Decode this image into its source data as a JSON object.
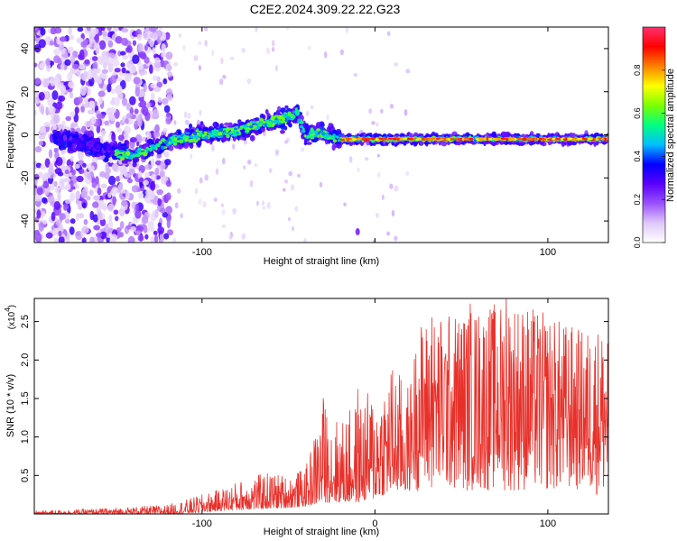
{
  "figure": {
    "title": "C2E2.2024.309.22.22.G23"
  },
  "chart_data": [
    {
      "type": "heatmap",
      "xlabel": "Height of straight line (km)",
      "ylabel": "Frequency (Hz)",
      "xlim": [
        -197,
        135
      ],
      "ylim": [
        -50,
        50
      ],
      "x_ticks": [
        -100,
        0,
        100
      ],
      "x_tick_labels": [
        "-100",
        "",
        "100"
      ],
      "y_ticks": [
        -40,
        -20,
        0,
        20,
        40
      ],
      "y_tick_labels": [
        "-40",
        "-20",
        "0",
        "20",
        "40"
      ],
      "colorbar": {
        "label": "Normalized spectral amplitude",
        "range": [
          0,
          1
        ],
        "ticks": [
          0.0,
          0.2,
          0.4,
          0.6,
          0.8
        ],
        "tick_labels": [
          "0.0",
          "0.2",
          "0.4",
          "0.6",
          "0.8"
        ],
        "colormap": [
          "#ffffff",
          "#e0c8f8",
          "#9a50ff",
          "#5a00ff",
          "#0000ff",
          "#00bfff",
          "#00ff80",
          "#7cff00",
          "#ffff00",
          "#ff8000",
          "#ff0000",
          "#ff3070"
        ]
      },
      "ridge": {
        "x": [
          -180,
          -150,
          -140,
          -120,
          -100,
          -80,
          -60,
          -50,
          -45,
          -40,
          -30,
          -20,
          0,
          20,
          50,
          100,
          135
        ],
        "y": [
          -2,
          -8,
          -10,
          -3,
          0,
          2,
          6,
          8,
          10,
          0,
          1,
          -2,
          -2,
          -2,
          -2,
          -2,
          -2
        ]
      }
    },
    {
      "type": "line",
      "xlabel": "Height of straight line (km)",
      "ylabel": "SNR (10 * v/v)",
      "y_multiplier": "(x10",
      "y_multiplier_exp": "4",
      "y_multiplier_close": ")",
      "xlim": [
        -197,
        135
      ],
      "ylim": [
        0,
        2.8
      ],
      "x_ticks": [
        -100,
        0,
        100
      ],
      "x_tick_labels": [
        "-100",
        "0",
        "100"
      ],
      "y_ticks": [
        0.5,
        1.0,
        1.5,
        2.0,
        2.5
      ],
      "y_tick_labels": [
        "0.5",
        "1.0",
        "1.5",
        "2.0",
        "2.5"
      ],
      "series_color": "#e8302a",
      "envelope": {
        "x": [
          -197,
          -160,
          -140,
          -120,
          -110,
          -100,
          -90,
          -80,
          -70,
          -60,
          -50,
          -40,
          -30,
          -20,
          -10,
          0,
          10,
          20,
          25,
          40,
          60,
          80,
          100,
          120,
          135
        ],
        "max": [
          0.04,
          0.07,
          0.09,
          0.12,
          0.18,
          0.25,
          0.32,
          0.42,
          0.5,
          0.55,
          0.5,
          0.6,
          1.5,
          1.2,
          1.5,
          1.65,
          2.0,
          1.65,
          2.5,
          2.6,
          2.7,
          2.8,
          2.6,
          2.4,
          2.5
        ],
        "min": [
          0.0,
          0.0,
          0.0,
          0.0,
          0.0,
          0.02,
          0.04,
          0.05,
          0.06,
          0.07,
          0.08,
          0.1,
          0.15,
          0.15,
          0.15,
          0.2,
          0.3,
          0.3,
          0.3,
          0.3,
          0.3,
          0.3,
          0.3,
          0.3,
          0.2
        ]
      },
      "peaks": [
        {
          "x": 76,
          "y": 2.85
        },
        {
          "x": 55,
          "y": 2.73
        },
        {
          "x": 33,
          "y": 2.55
        },
        {
          "x": -30,
          "y": 1.5
        },
        {
          "x": -10,
          "y": 1.62
        },
        {
          "x": 135,
          "y": 2.55
        }
      ]
    }
  ]
}
